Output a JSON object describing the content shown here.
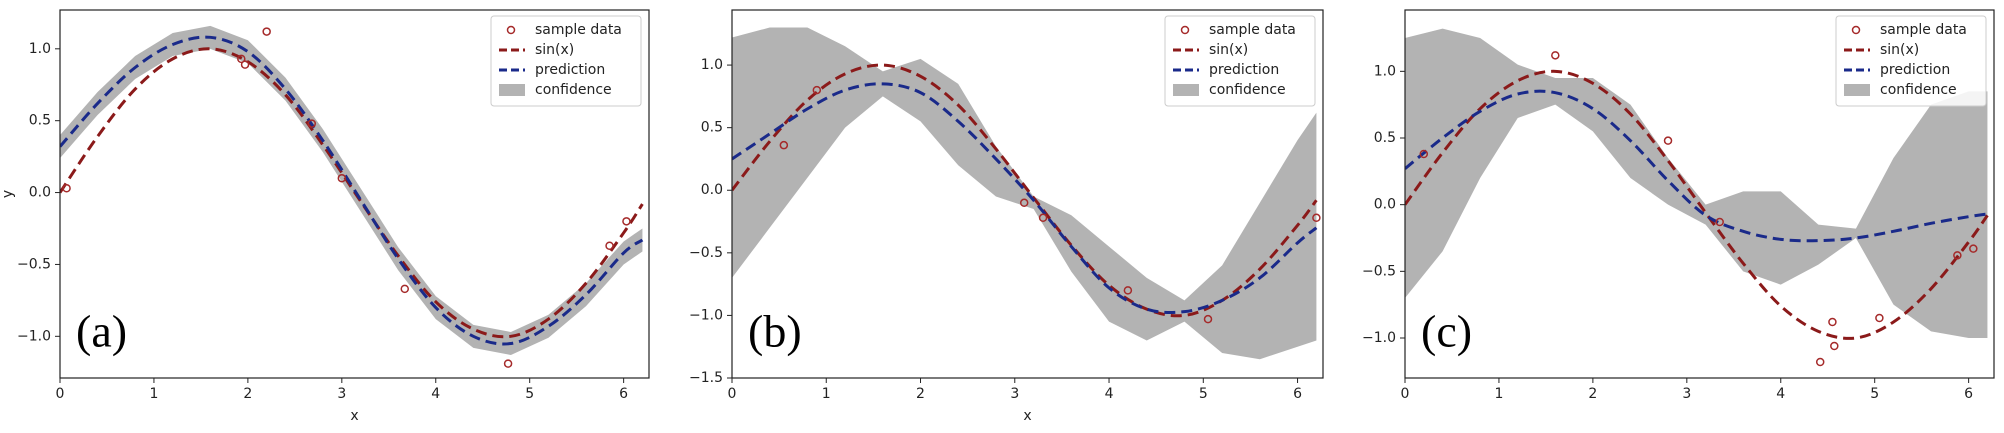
{
  "chart_data": [
    {
      "type": "line",
      "annotation": "(a)",
      "xlabel": "x",
      "ylabel": "y",
      "xlim": [
        0,
        6.27
      ],
      "ylim": [
        -1.29,
        1.27
      ],
      "xticks": [
        0,
        1,
        2,
        3,
        4,
        5,
        6
      ],
      "yticks": [
        {
          "value": -1,
          "label": "−1.0"
        },
        {
          "value": -0.5,
          "label": "−0.5"
        },
        {
          "value": 0,
          "label": "0.0"
        },
        {
          "value": 0.5,
          "label": "0.5"
        },
        {
          "value": 1,
          "label": "1.0"
        }
      ],
      "legend": "upper right",
      "x": [
        0,
        0.4,
        0.8,
        1.2,
        1.6,
        2.0,
        2.4,
        2.8,
        3.2,
        3.6,
        4.0,
        4.4,
        4.8,
        5.2,
        5.6,
        6.0,
        6.2
      ],
      "series": [
        {
          "name": "sample data",
          "style": "markers",
          "color": "#a52a2a",
          "x": [
            0.07,
            1.93,
            1.97,
            2.2,
            2.68,
            3.0,
            3.67,
            4.77,
            5.85,
            6.03
          ],
          "values": [
            0.03,
            0.93,
            0.89,
            1.12,
            0.48,
            0.1,
            -0.67,
            -1.19,
            -0.37,
            -0.2
          ]
        },
        {
          "name": "sin(x)",
          "style": "dashed",
          "color": "#8b1a1a",
          "values": [
            0,
            0.39,
            0.72,
            0.93,
            1.0,
            0.91,
            0.68,
            0.33,
            -0.06,
            -0.44,
            -0.76,
            -0.95,
            -1.0,
            -0.88,
            -0.63,
            -0.28,
            -0.08
          ]
        },
        {
          "name": "prediction",
          "style": "dashed",
          "color": "#1a2a8a",
          "values": [
            0.32,
            0.62,
            0.87,
            1.03,
            1.08,
            0.98,
            0.72,
            0.36,
            -0.05,
            -0.46,
            -0.8,
            -1.0,
            -1.05,
            -0.93,
            -0.71,
            -0.42,
            -0.33
          ]
        },
        {
          "name": "confidence",
          "style": "band",
          "color": "#b3b3b3",
          "upper": [
            0.4,
            0.7,
            0.95,
            1.11,
            1.16,
            1.06,
            0.8,
            0.44,
            0.03,
            -0.38,
            -0.72,
            -0.92,
            -0.97,
            -0.85,
            -0.63,
            -0.34,
            -0.25
          ],
          "lower": [
            0.24,
            0.54,
            0.79,
            0.95,
            1.0,
            0.9,
            0.64,
            0.28,
            -0.13,
            -0.54,
            -0.88,
            -1.08,
            -1.13,
            -1.01,
            -0.79,
            -0.5,
            -0.41
          ]
        }
      ]
    },
    {
      "type": "line",
      "annotation": "(b)",
      "xlabel": "x",
      "xlim": [
        0,
        6.27
      ],
      "ylim": [
        -1.5,
        1.44
      ],
      "xticks": [
        0,
        1,
        2,
        3,
        4,
        5,
        6
      ],
      "yticks": [
        {
          "value": -1.5,
          "label": "−1.5"
        },
        {
          "value": -1,
          "label": "−1.0"
        },
        {
          "value": -0.5,
          "label": "−0.5"
        },
        {
          "value": 0,
          "label": "0.0"
        },
        {
          "value": 0.5,
          "label": "0.5"
        },
        {
          "value": 1,
          "label": "1.0"
        }
      ],
      "legend": "upper right",
      "x": [
        0,
        0.4,
        0.8,
        1.2,
        1.6,
        2.0,
        2.4,
        2.8,
        3.2,
        3.6,
        4.0,
        4.4,
        4.8,
        5.2,
        5.6,
        6.0,
        6.2
      ],
      "series": [
        {
          "name": "sample data",
          "style": "markers",
          "color": "#a52a2a",
          "x": [
            0.55,
            0.9,
            3.1,
            3.3,
            4.2,
            5.05,
            6.2
          ],
          "values": [
            0.36,
            0.8,
            -0.1,
            -0.22,
            -0.8,
            -1.03,
            -0.22
          ]
        },
        {
          "name": "sin(x)",
          "style": "dashed",
          "color": "#8b1a1a",
          "values": [
            0,
            0.39,
            0.72,
            0.93,
            1.0,
            0.91,
            0.68,
            0.33,
            -0.06,
            -0.44,
            -0.76,
            -0.95,
            -1.0,
            -0.88,
            -0.63,
            -0.28,
            -0.08
          ]
        },
        {
          "name": "prediction",
          "style": "dashed",
          "color": "#1a2a8a",
          "values": [
            0.25,
            0.45,
            0.65,
            0.8,
            0.85,
            0.78,
            0.55,
            0.25,
            -0.08,
            -0.45,
            -0.78,
            -0.95,
            -0.97,
            -0.88,
            -0.7,
            -0.42,
            -0.3
          ]
        },
        {
          "name": "confidence",
          "style": "band",
          "color": "#b3b3b3",
          "upper": [
            1.22,
            1.3,
            1.3,
            1.15,
            0.95,
            1.05,
            0.85,
            0.35,
            -0.05,
            -0.2,
            -0.45,
            -0.7,
            -0.88,
            -0.6,
            -0.1,
            0.4,
            0.62
          ],
          "lower": [
            -0.7,
            -0.3,
            0.1,
            0.5,
            0.75,
            0.55,
            0.2,
            -0.05,
            -0.15,
            -0.65,
            -1.05,
            -1.2,
            -1.05,
            -1.3,
            -1.35,
            -1.25,
            -1.2
          ]
        }
      ]
    },
    {
      "type": "line",
      "annotation": "(c)",
      "xlim": [
        0,
        6.27
      ],
      "ylim": [
        -1.3,
        1.46
      ],
      "xticks": [
        0,
        1,
        2,
        3,
        4,
        5,
        6
      ],
      "yticks": [
        {
          "value": -1,
          "label": "−1.0"
        },
        {
          "value": -0.5,
          "label": "−0.5"
        },
        {
          "value": 0,
          "label": "0.0"
        },
        {
          "value": 0.5,
          "label": "0.5"
        },
        {
          "value": 1,
          "label": "1.0"
        }
      ],
      "legend": "upper right",
      "x": [
        0,
        0.4,
        0.8,
        1.2,
        1.6,
        2.0,
        2.4,
        2.8,
        3.2,
        3.6,
        4.0,
        4.4,
        4.8,
        5.2,
        5.6,
        6.0,
        6.2
      ],
      "series": [
        {
          "name": "sample data",
          "style": "markers",
          "color": "#a52a2a",
          "x": [
            0.2,
            1.6,
            2.8,
            3.35,
            4.42,
            4.57,
            4.55,
            5.05,
            5.88,
            6.05
          ],
          "values": [
            0.38,
            1.12,
            0.48,
            -0.13,
            -1.18,
            -1.06,
            -0.88,
            -0.85,
            -0.38,
            -0.33
          ]
        },
        {
          "name": "sin(x)",
          "style": "dashed",
          "color": "#8b1a1a",
          "values": [
            0,
            0.39,
            0.72,
            0.93,
            1.0,
            0.91,
            0.68,
            0.33,
            -0.06,
            -0.44,
            -0.76,
            -0.95,
            -1.0,
            -0.88,
            -0.63,
            -0.28,
            -0.08
          ]
        },
        {
          "name": "prediction",
          "style": "dashed",
          "color": "#1a2a8a",
          "values": [
            0.27,
            0.5,
            0.7,
            0.83,
            0.84,
            0.72,
            0.48,
            0.18,
            -0.08,
            -0.2,
            -0.26,
            -0.27,
            -0.25,
            -0.2,
            -0.14,
            -0.09,
            -0.07
          ]
        },
        {
          "name": "confidence",
          "style": "band",
          "color": "#b3b3b3",
          "upper": [
            1.25,
            1.32,
            1.25,
            1.05,
            0.95,
            0.95,
            0.75,
            0.35,
            0.0,
            0.1,
            0.1,
            -0.15,
            -0.18,
            0.35,
            0.75,
            0.85,
            0.85
          ],
          "lower": [
            -0.7,
            -0.35,
            0.2,
            0.65,
            0.75,
            0.55,
            0.2,
            0.0,
            -0.15,
            -0.5,
            -0.6,
            -0.45,
            -0.25,
            -0.75,
            -0.95,
            -1.0,
            -1.0
          ]
        }
      ]
    }
  ]
}
